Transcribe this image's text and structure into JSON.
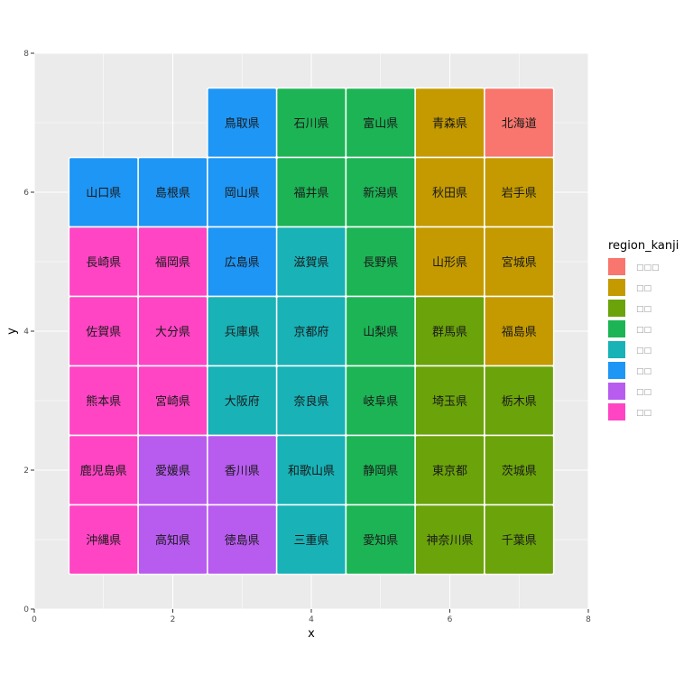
{
  "chart_data": {
    "type": "heatmap",
    "xlabel": "x",
    "ylabel": "y",
    "xlim": [
      0,
      8
    ],
    "ylim": [
      0,
      8
    ],
    "x_ticks": [
      0,
      2,
      4,
      6,
      8
    ],
    "y_ticks": [
      0,
      2,
      4,
      6,
      8
    ],
    "grid": true,
    "legend": {
      "title": "region_kanji",
      "position": "right",
      "items": [
        {
          "label": "□□□",
          "color": "#F8766D"
        },
        {
          "label": "□□",
          "color": "#C49A00"
        },
        {
          "label": "□□",
          "color": "#6BA30A"
        },
        {
          "label": "□□",
          "color": "#1DB455"
        },
        {
          "label": "□□",
          "color": "#18B2B7"
        },
        {
          "label": "□□",
          "color": "#1E96F5"
        },
        {
          "label": "□□",
          "color": "#B85CF0"
        },
        {
          "label": "□□",
          "color": "#FF45C4"
        }
      ]
    },
    "tiles": [
      {
        "x": 3,
        "y": 7,
        "label": "鳥取県",
        "region": 5
      },
      {
        "x": 4,
        "y": 7,
        "label": "石川県",
        "region": 3
      },
      {
        "x": 5,
        "y": 7,
        "label": "富山県",
        "region": 3
      },
      {
        "x": 6,
        "y": 7,
        "label": "青森県",
        "region": 1
      },
      {
        "x": 7,
        "y": 7,
        "label": "北海道",
        "region": 0
      },
      {
        "x": 1,
        "y": 6,
        "label": "山口県",
        "region": 5
      },
      {
        "x": 2,
        "y": 6,
        "label": "島根県",
        "region": 5
      },
      {
        "x": 3,
        "y": 6,
        "label": "岡山県",
        "region": 5
      },
      {
        "x": 4,
        "y": 6,
        "label": "福井県",
        "region": 3
      },
      {
        "x": 5,
        "y": 6,
        "label": "新潟県",
        "region": 3
      },
      {
        "x": 6,
        "y": 6,
        "label": "秋田県",
        "region": 1
      },
      {
        "x": 7,
        "y": 6,
        "label": "岩手県",
        "region": 1
      },
      {
        "x": 1,
        "y": 5,
        "label": "長崎県",
        "region": 7
      },
      {
        "x": 2,
        "y": 5,
        "label": "福岡県",
        "region": 7
      },
      {
        "x": 3,
        "y": 5,
        "label": "広島県",
        "region": 5
      },
      {
        "x": 4,
        "y": 5,
        "label": "滋賀県",
        "region": 4
      },
      {
        "x": 5,
        "y": 5,
        "label": "長野県",
        "region": 3
      },
      {
        "x": 6,
        "y": 5,
        "label": "山形県",
        "region": 1
      },
      {
        "x": 7,
        "y": 5,
        "label": "宮城県",
        "region": 1
      },
      {
        "x": 1,
        "y": 4,
        "label": "佐賀県",
        "region": 7
      },
      {
        "x": 2,
        "y": 4,
        "label": "大分県",
        "region": 7
      },
      {
        "x": 3,
        "y": 4,
        "label": "兵庫県",
        "region": 4
      },
      {
        "x": 4,
        "y": 4,
        "label": "京都府",
        "region": 4
      },
      {
        "x": 5,
        "y": 4,
        "label": "山梨県",
        "region": 3
      },
      {
        "x": 6,
        "y": 4,
        "label": "群馬県",
        "region": 2
      },
      {
        "x": 7,
        "y": 4,
        "label": "福島県",
        "region": 1
      },
      {
        "x": 1,
        "y": 3,
        "label": "熊本県",
        "region": 7
      },
      {
        "x": 2,
        "y": 3,
        "label": "宮崎県",
        "region": 7
      },
      {
        "x": 3,
        "y": 3,
        "label": "大阪府",
        "region": 4
      },
      {
        "x": 4,
        "y": 3,
        "label": "奈良県",
        "region": 4
      },
      {
        "x": 5,
        "y": 3,
        "label": "岐阜県",
        "region": 3
      },
      {
        "x": 6,
        "y": 3,
        "label": "埼玉県",
        "region": 2
      },
      {
        "x": 7,
        "y": 3,
        "label": "栃木県",
        "region": 2
      },
      {
        "x": 1,
        "y": 2,
        "label": "鹿児島県",
        "region": 7
      },
      {
        "x": 2,
        "y": 2,
        "label": "愛媛県",
        "region": 6
      },
      {
        "x": 3,
        "y": 2,
        "label": "香川県",
        "region": 6
      },
      {
        "x": 4,
        "y": 2,
        "label": "和歌山県",
        "region": 4
      },
      {
        "x": 5,
        "y": 2,
        "label": "静岡県",
        "region": 3
      },
      {
        "x": 6,
        "y": 2,
        "label": "東京都",
        "region": 2
      },
      {
        "x": 7,
        "y": 2,
        "label": "茨城県",
        "region": 2
      },
      {
        "x": 1,
        "y": 1,
        "label": "沖縄県",
        "region": 7
      },
      {
        "x": 2,
        "y": 1,
        "label": "高知県",
        "region": 6
      },
      {
        "x": 3,
        "y": 1,
        "label": "徳島県",
        "region": 6
      },
      {
        "x": 4,
        "y": 1,
        "label": "三重県",
        "region": 4
      },
      {
        "x": 5,
        "y": 1,
        "label": "愛知県",
        "region": 3
      },
      {
        "x": 6,
        "y": 1,
        "label": "神奈川県",
        "region": 2
      },
      {
        "x": 7,
        "y": 1,
        "label": "千葉県",
        "region": 2
      }
    ]
  }
}
